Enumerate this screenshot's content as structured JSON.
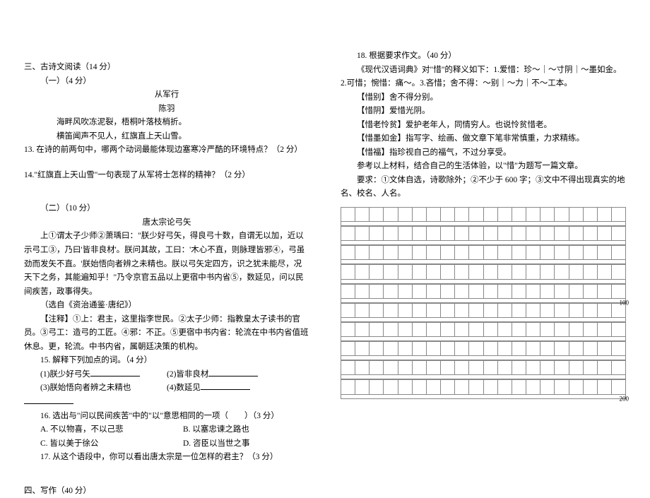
{
  "left": {
    "section3_title": "三、古诗文阅读（14 分）",
    "part1_title": "（一）（4 分）",
    "poem_title": "从军行",
    "poem_author": "陈羽",
    "poem_line1": "海畔风吹冻泥裂，梧桐叶落枝梢折。",
    "poem_line2": "横笛闻声不见人，红旗直上天山雪。",
    "q13": "13. 在诗的前两句中，哪两个动词最能体现边塞寒冷严酷的环境特点？（2 分）",
    "q14": "14.\"红旗直上天山雪\"一句表现了从军将士怎样的精神？（2 分）",
    "part2_title": "（二）（10 分）",
    "essay_title": "唐太宗论弓矢",
    "essay_body": "上①谓太子少师②萧瑀曰：\"朕少好弓矢，得良弓十数，自谓无以加，近以示弓工③，乃曰'皆非良材'。朕问其故，工曰：'木心不直，则脉理皆邪④，弓虽劲而发矢不直。'朕始悟向者辨之未精也。朕以弓矢定四方，识之犹未能尽，况天下之务，其能遍知乎！\"乃令京官五品以上更宿中书内省⑤，数延见，问以民间疾苦，政事得失。",
    "essay_src": "（选自《资治通鉴·唐纪》）",
    "notes": "【注释】①上：君主，这里指李世民。②太子少师：指教皇太子读书的官员。③弓工：造弓的工匠。④邪：不正。⑤更宿中书内省：轮流在中书内省值班休息。更，轮流。中书内省，属朝廷决策的机构。",
    "q15": "15. 解释下列加点的词。（4 分）",
    "q15_1": "(1)朕少好弓矢",
    "q15_2": "(2)皆非良材",
    "q15_3": "(3)朕始悟向者辨之未精也",
    "q15_4": "(4)数延见",
    "q16": "16. 选出与\"问以民间疾苦\"中的\"以\"意思相同的一项（　　）（3 分）",
    "q16_a": "A. 不以物喜，不以己悲",
    "q16_b": "B. 以塞忠谏之路也",
    "q16_c": "C. 皆以美于徐公",
    "q16_d": "D. 咨臣以当世之事",
    "q17": "17. 从这个语段中，你可以看出唐太宗是一位怎样的君主？（3 分）",
    "section4_title": "四、写作（40 分）"
  },
  "right": {
    "q18": "18. 根据要求作文。（40 分）",
    "intro": "《现代汉语词典》对\"惜\"的释义如下：1.爱惜：珍～｜～寸阴｜～墨如金。2.可惜；惋惜：痛～。3.吝惜；舍不得：～别｜～力｜不～工本。",
    "def1": "【惜别】舍不得分别。",
    "def2": "【惜阴】爱惜光阴。",
    "def3": "【惜老怜贫】爱护老年人，同情穷人。也说怜贫惜老。",
    "def4": "【惜墨如金】指写字、绘画、做文章下笔非常慎重，力求精练。",
    "def5": "【惜福】指珍视自己的福气，不过分享受。",
    "prompt": "参考以上材料，结合自己的生活体验，以\"惜\"为题写一篇文章。",
    "reqs": "要求：①文体自选，诗歌除外；②不少于 600 字；③文中不得出现真实的地名、校名、人名。",
    "count100": "100",
    "count200": "200"
  },
  "grid": {
    "cols": 20,
    "rows_block": 5,
    "blocks": 2,
    "border_color": "#888888",
    "cell_bg": "#ffffff"
  }
}
